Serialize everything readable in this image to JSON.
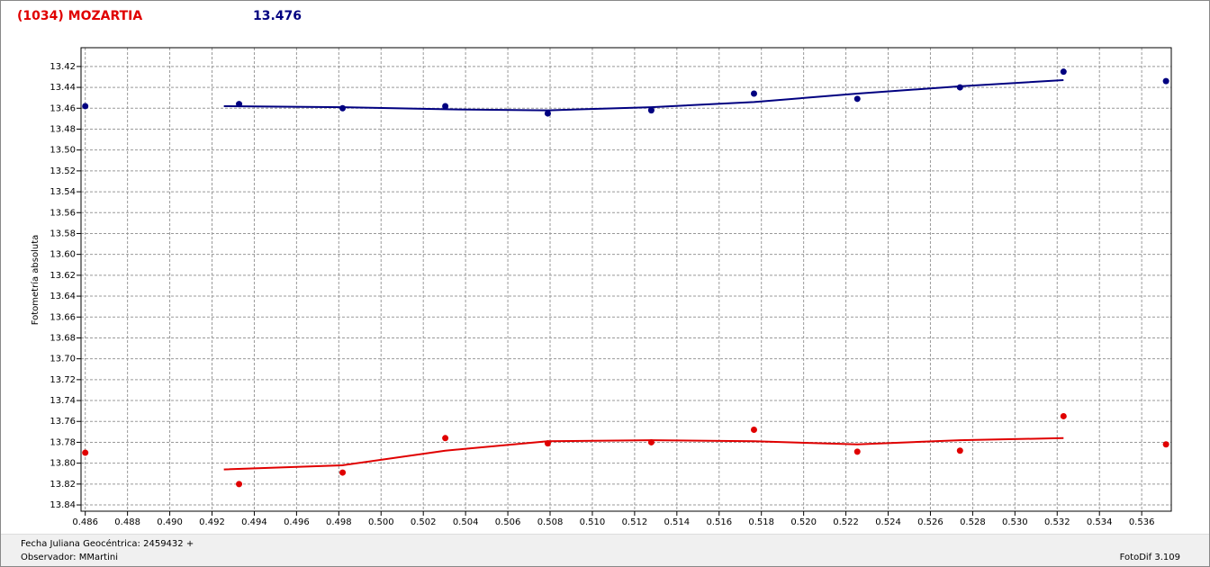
{
  "header": {
    "title": "(1034) MOZARTIA",
    "magnitude": "13.476"
  },
  "chart_data": {
    "type": "scatter",
    "y_label": "Fotometría absoluta",
    "xlim": [
      0.4858,
      0.5374
    ],
    "ylim": [
      13.402,
      13.846
    ],
    "y_inverted": true,
    "grid": true,
    "xticks": [
      0.486,
      0.488,
      {
        "value": 0.49,
        "label": "0.490"
      },
      0.492,
      0.494,
      0.496,
      0.498,
      {
        "value": 0.5,
        "label": "0.500"
      },
      0.502,
      0.504,
      0.506,
      0.508,
      {
        "value": 0.51,
        "label": "0.510"
      },
      0.512,
      0.514,
      0.516,
      0.518,
      {
        "value": 0.52,
        "label": "0.520"
      },
      0.522,
      0.524,
      0.526,
      0.528,
      {
        "value": 0.53,
        "label": "0.530"
      },
      0.532,
      0.534,
      0.536
    ],
    "yticks": [
      13.42,
      13.44,
      13.46,
      13.48,
      {
        "value": 13.5,
        "label": "13.50"
      },
      13.52,
      13.54,
      13.56,
      13.58,
      {
        "value": 13.6,
        "label": "13.60"
      },
      13.62,
      13.64,
      13.66,
      13.68,
      {
        "value": 13.7,
        "label": "13.70"
      },
      13.72,
      13.74,
      13.76,
      13.78,
      {
        "value": 13.8,
        "label": "13.80"
      },
      13.82,
      13.84
    ],
    "series": [
      {
        "style": "markers",
        "color": "#000080",
        "x": [
          0.486,
          0.49328,
          0.49818,
          0.50304,
          0.50789,
          0.51279,
          0.51765,
          0.52254,
          0.5274,
          0.5323,
          0.53715
        ],
        "values": [
          13.458,
          13.456,
          13.46,
          13.458,
          13.465,
          13.462,
          13.446,
          13.451,
          13.44,
          13.425,
          13.434
        ]
      },
      {
        "style": "line",
        "color": "#000080",
        "x": [
          0.49256,
          0.49818,
          0.50304,
          0.50789,
          0.51279,
          0.51765,
          0.52254,
          0.5274,
          0.5323
        ],
        "values": [
          13.458,
          13.459,
          13.461,
          13.462,
          13.459,
          13.454,
          13.446,
          13.439,
          13.433
        ]
      },
      {
        "style": "markers",
        "color": "#e00000",
        "x": [
          0.486,
          0.49328,
          0.49818,
          0.50304,
          0.50789,
          0.51279,
          0.51765,
          0.52254,
          0.5274,
          0.5323,
          0.53715
        ],
        "values": [
          13.79,
          13.82,
          13.809,
          13.776,
          13.781,
          13.78,
          13.768,
          13.789,
          13.788,
          13.755,
          13.782
        ]
      },
      {
        "style": "line",
        "color": "#e00000",
        "x": [
          0.49256,
          0.49818,
          0.50304,
          0.50789,
          0.51279,
          0.51765,
          0.52254,
          0.5274,
          0.5323
        ],
        "values": [
          13.806,
          13.802,
          13.788,
          13.779,
          13.778,
          13.779,
          13.782,
          13.778,
          13.776
        ]
      }
    ]
  },
  "footer": {
    "date": "Fecha Juliana Geocéntrica: 2459432 +",
    "observer": "Observador: MMartini",
    "version": "FotoDif 3.109"
  }
}
